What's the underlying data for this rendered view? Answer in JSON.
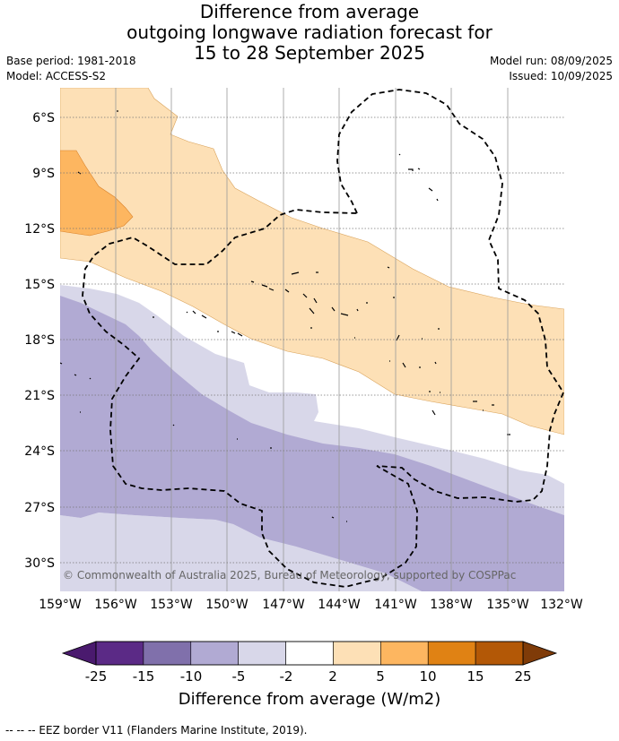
{
  "title": {
    "line1": "Difference from average",
    "line2": "outgoing longwave radiation forecast for",
    "line3": "15 to 28 September 2025"
  },
  "meta": {
    "base_period": "Base period: 1981-2018",
    "model": "Model: ACCESS-S2",
    "model_run": "Model run: 08/09/2025",
    "issued": "Issued: 10/09/2025"
  },
  "axes": {
    "lat_labels": [
      "6°S",
      "9°S",
      "12°S",
      "15°S",
      "18°S",
      "21°S",
      "24°S",
      "27°S",
      "30°S"
    ],
    "lon_labels": [
      "159°W",
      "156°W",
      "153°W",
      "150°W",
      "147°W",
      "144°W",
      "141°W",
      "138°W",
      "135°W",
      "132°W"
    ]
  },
  "copyright": "© Commonwealth of Australia 2025, Bureau of Meteorology, supported by COSPPac",
  "colorbar": {
    "tick_labels": [
      "-25",
      "-15",
      "-10",
      "-5",
      "-2",
      "2",
      "5",
      "10",
      "15",
      "25"
    ],
    "colors": [
      "#4a1a6e",
      "#5b2a86",
      "#8070ab",
      "#b1aad3",
      "#d8d7e9",
      "#ffffff",
      "#fde0b6",
      "#fdb660",
      "#e08214",
      "#b35806",
      "#7f3b08"
    ],
    "title": "Difference from average (W/m2)"
  },
  "footnote": "--  --  -- EEZ border V11 (Flanders Marine Institute, 2019).",
  "chart_data": {
    "type": "heatmap",
    "variable": "outgoing longwave radiation anomaly",
    "units": "W/m2",
    "lon_range": [
      "159°W",
      "132°W"
    ],
    "lat_range": [
      "31.5°S",
      "4.5°S"
    ],
    "levels": [
      -25,
      -15,
      -10,
      -5,
      -2,
      2,
      5,
      10,
      15,
      25
    ],
    "regions": [
      {
        "band": "2 to 5",
        "description_area": "north-west to south-east diagonal band"
      },
      {
        "band": "5 to 10",
        "description_area": "far north-west corner"
      },
      {
        "band": "-2 to -5",
        "description_area": "band south of neutral zone"
      },
      {
        "band": "-5 to -10",
        "description_area": "south-west and south"
      }
    ]
  }
}
